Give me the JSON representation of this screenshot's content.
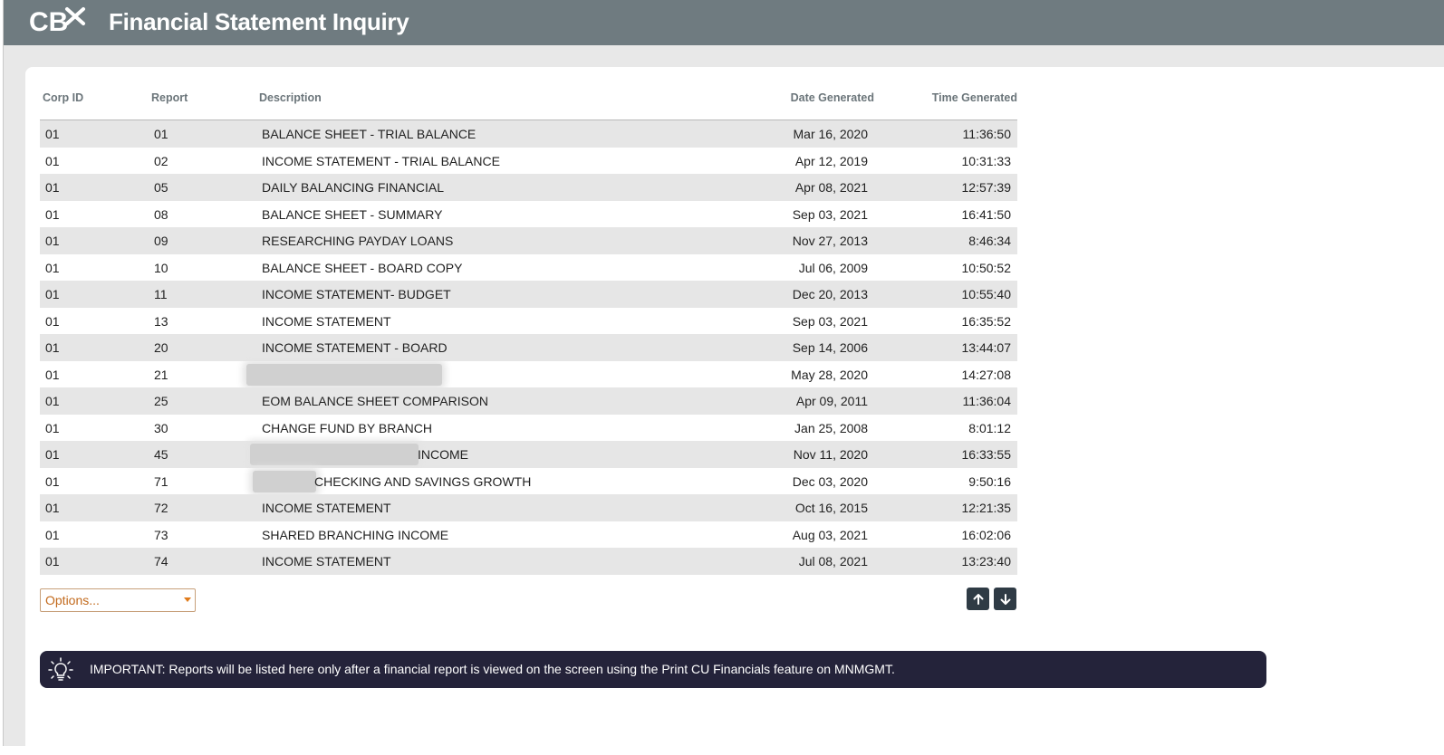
{
  "app": {
    "title": "Financial Statement Inquiry",
    "logo_text": "CB"
  },
  "table": {
    "headers": {
      "corp_id": "Corp ID",
      "report": "Report",
      "description": "Description",
      "date_generated": "Date Generated",
      "time_generated": "Time Generated"
    },
    "rows": [
      {
        "corp": "01",
        "report": "01",
        "desc": "BALANCE SHEET - TRIAL BALANCE",
        "date": "Mar 16, 2020",
        "time": "11:36:50"
      },
      {
        "corp": "01",
        "report": "02",
        "desc": "INCOME STATEMENT - TRIAL BALANCE",
        "date": "Apr 12, 2019",
        "time": "10:31:33"
      },
      {
        "corp": "01",
        "report": "05",
        "desc": "DAILY BALANCING FINANCIAL",
        "date": "Apr 08, 2021",
        "time": "12:57:39"
      },
      {
        "corp": "01",
        "report": "08",
        "desc": "BALANCE SHEET - SUMMARY",
        "date": "Sep 03, 2021",
        "time": "16:41:50"
      },
      {
        "corp": "01",
        "report": "09",
        "desc": "RESEARCHING PAYDAY LOANS",
        "date": "Nov 27, 2013",
        "time": "8:46:34"
      },
      {
        "corp": "01",
        "report": "10",
        "desc": "BALANCE SHEET - BOARD COPY",
        "date": "Jul 06, 2009",
        "time": "10:50:52"
      },
      {
        "corp": "01",
        "report": "11",
        "desc": "INCOME STATEMENT- BUDGET",
        "date": "Dec 20, 2013",
        "time": "10:55:40"
      },
      {
        "corp": "01",
        "report": "13",
        "desc": "INCOME STATEMENT",
        "date": "Sep 03, 2021",
        "time": "16:35:52"
      },
      {
        "corp": "01",
        "report": "20",
        "desc": "INCOME STATEMENT - BOARD",
        "date": "Sep 14, 2006",
        "time": "13:44:07"
      },
      {
        "corp": "01",
        "report": "21",
        "desc": "",
        "date": "May 28, 2020",
        "time": "14:27:08"
      },
      {
        "corp": "01",
        "report": "25",
        "desc": "EOM BALANCE SHEET COMPARISON",
        "date": "Apr 09, 2011",
        "time": "11:36:04"
      },
      {
        "corp": "01",
        "report": "30",
        "desc": "CHANGE FUND BY BRANCH",
        "date": "Jan 25, 2008",
        "time": "8:01:12"
      },
      {
        "corp": "01",
        "report": "45",
        "desc": "INCOME",
        "date": "Nov 11, 2020",
        "time": "16:33:55"
      },
      {
        "corp": "01",
        "report": "71",
        "desc": "CHECKING AND SAVINGS GROWTH",
        "date": "Dec 03, 2020",
        "time": "9:50:16"
      },
      {
        "corp": "01",
        "report": "72",
        "desc": "INCOME STATEMENT",
        "date": "Oct 16, 2015",
        "time": "12:21:35"
      },
      {
        "corp": "01",
        "report": "73",
        "desc": "SHARED BRANCHING INCOME",
        "date": "Aug 03, 2021",
        "time": "16:02:06"
      },
      {
        "corp": "01",
        "report": "74",
        "desc": "INCOME STATEMENT",
        "date": "Jul 08, 2021",
        "time": "13:23:40"
      }
    ]
  },
  "controls": {
    "options_label": "Options...",
    "up_icon": "arrow-up-icon",
    "down_icon": "arrow-down-icon"
  },
  "notice": {
    "icon": "lightbulb-icon",
    "text": "IMPORTANT: Reports will be listed here only after a financial report is viewed on the screen using the Print CU Financials feature on MNMGMT."
  },
  "colors": {
    "titlebar": "#6f7b80",
    "row_alt": "#e6e6e6",
    "notice_bg": "#24233a",
    "options_text": "#c26a1d",
    "nav_button": "#2f3b45"
  }
}
